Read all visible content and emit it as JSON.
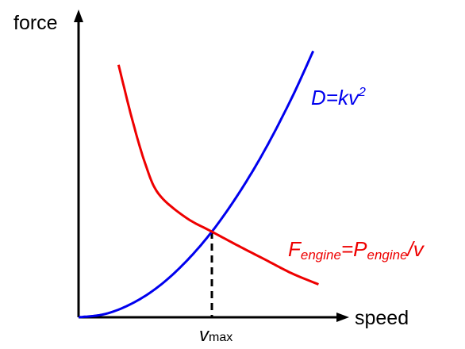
{
  "colors": {
    "drag": "#0000ee",
    "engine": "#ee0000",
    "axis": "#000000"
  },
  "chart_data": {
    "type": "line",
    "ylabel": "force",
    "xlabel": "speed",
    "x_tick": {
      "main": "v",
      "sub": "max"
    },
    "xlim": [
      0,
      10
    ],
    "ylim": [
      0,
      10
    ],
    "grid": false,
    "series": [
      {
        "name": "D=kv2",
        "label_parts": {
          "main": "D=kv",
          "sup": "2"
        },
        "color": "#0000ee",
        "x": [
          0,
          1,
          2,
          3,
          4,
          5,
          6,
          7,
          8,
          8.8
        ],
        "y": [
          0,
          0.12,
          0.5,
          1.12,
          2,
          3.12,
          4.5,
          6.12,
          8,
          9.7
        ]
      },
      {
        "name": "Fengine=Pengine/v",
        "label_parts": {
          "f": "F",
          "fsub": "engine",
          "eq": "=P",
          "psub": "engine",
          "tail": "/v"
        },
        "color": "#ee0000",
        "x": [
          1.5,
          2,
          2.5,
          3,
          4,
          5,
          6,
          7,
          8,
          9
        ],
        "y": [
          9.2,
          7.25,
          5.6,
          4.5,
          3.65,
          3.12,
          2.6,
          2.1,
          1.6,
          1.2
        ]
      }
    ],
    "annotations": [
      {
        "type": "dashed-vertical",
        "at_x": 5,
        "at_y": 3.12,
        "label": "vmax"
      }
    ]
  }
}
